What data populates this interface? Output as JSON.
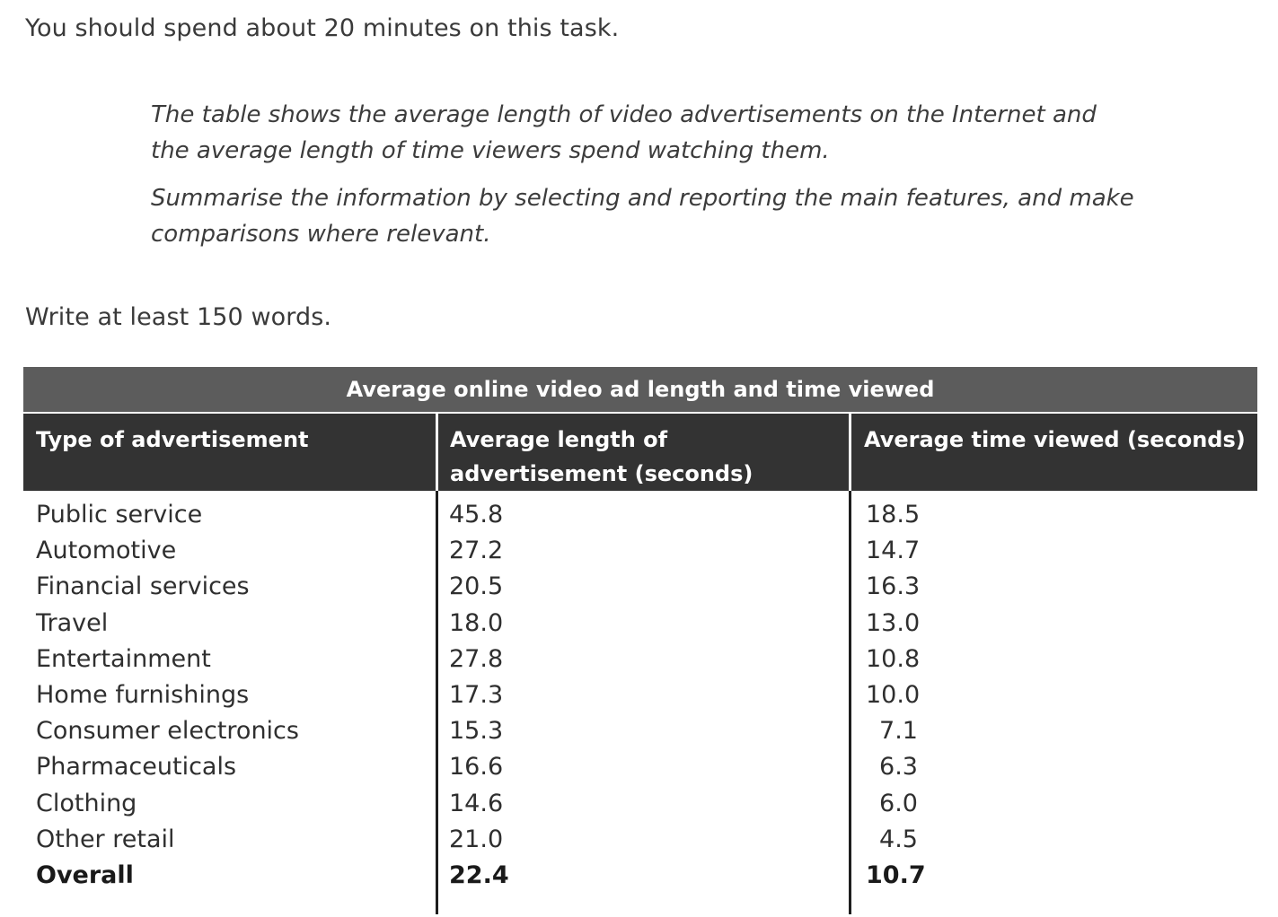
{
  "task": {
    "time_instruction": "You should spend about 20 minutes on this task.",
    "prompt_1": "The table shows the average length of video advertisements on the Internet and the average length of time viewers spend watching them.",
    "prompt_2": "Summarise the information by selecting and reporting the main features, and make comparisons where relevant.",
    "word_instruction": "Write at least 150 words."
  },
  "chart_data": {
    "type": "table",
    "title": "Average online video ad length and time viewed",
    "columns": [
      "Type of advertisement",
      "Average length of advertisement (seconds)",
      "Average time viewed (seconds)"
    ],
    "rows": [
      {
        "type": "Public service",
        "length": "45.8",
        "viewed": "18.5"
      },
      {
        "type": "Automotive",
        "length": "27.2",
        "viewed": "14.7"
      },
      {
        "type": "Financial services",
        "length": "20.5",
        "viewed": "16.3"
      },
      {
        "type": "Travel",
        "length": "18.0",
        "viewed": "13.0"
      },
      {
        "type": "Entertainment",
        "length": "27.8",
        "viewed": "10.8"
      },
      {
        "type": "Home furnishings",
        "length": "17.3",
        "viewed": "10.0"
      },
      {
        "type": "Consumer electronics",
        "length": "15.3",
        "viewed": "7.1"
      },
      {
        "type": "Pharmaceuticals",
        "length": "16.6",
        "viewed": "6.3"
      },
      {
        "type": "Clothing",
        "length": "14.6",
        "viewed": "6.0"
      },
      {
        "type": "Other retail",
        "length": "21.0",
        "viewed": "4.5"
      },
      {
        "type": "Overall",
        "length": "22.4",
        "viewed": "10.7"
      }
    ]
  }
}
